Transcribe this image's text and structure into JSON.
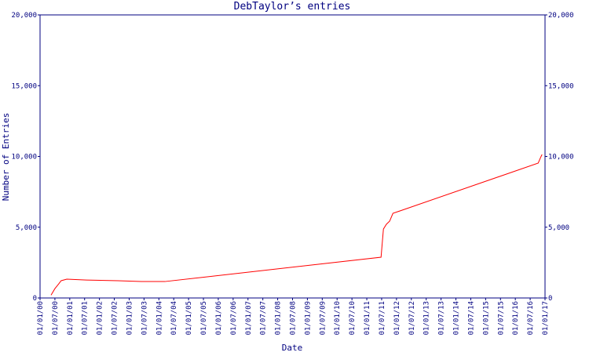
{
  "chart_data": {
    "type": "line",
    "title": "DebTaylor’s entries",
    "x_label": "Date",
    "y_label": "Number of Entries",
    "x": [
      2000.37,
      2000.5,
      2000.63,
      2000.71,
      2000.9,
      2001.56,
      2002.62,
      2003.41,
      2004.2,
      2011.48,
      2011.56,
      2011.66,
      2011.77,
      2011.88,
      2016.77,
      2016.85,
      2016.9
    ],
    "series": [
      {
        "name": "entries",
        "color": "#ff0000",
        "values": [
          200,
          660,
          1000,
          1220,
          1330,
          1270,
          1220,
          1160,
          1160,
          2880,
          4870,
          5210,
          5430,
          5980,
          9530,
          9920,
          10140
        ]
      }
    ],
    "xlim": [
      2000,
      2017
    ],
    "xticks": [
      {
        "value": 2000,
        "label": "01/01/00"
      },
      {
        "value": 2000.5,
        "label": "01/07/00"
      },
      {
        "value": 2001,
        "label": "01/01/01"
      },
      {
        "value": 2001.5,
        "label": "01/07/01"
      },
      {
        "value": 2002,
        "label": "01/01/02"
      },
      {
        "value": 2002.5,
        "label": "01/07/02"
      },
      {
        "value": 2003,
        "label": "01/01/03"
      },
      {
        "value": 2003.5,
        "label": "01/07/03"
      },
      {
        "value": 2004,
        "label": "01/01/04"
      },
      {
        "value": 2004.5,
        "label": "01/07/04"
      },
      {
        "value": 2005,
        "label": "01/01/05"
      },
      {
        "value": 2005.5,
        "label": "01/07/05"
      },
      {
        "value": 2006,
        "label": "01/01/06"
      },
      {
        "value": 2006.5,
        "label": "01/07/06"
      },
      {
        "value": 2007,
        "label": "01/01/07"
      },
      {
        "value": 2007.5,
        "label": "01/07/07"
      },
      {
        "value": 2008,
        "label": "01/01/08"
      },
      {
        "value": 2008.5,
        "label": "01/07/08"
      },
      {
        "value": 2009,
        "label": "01/01/09"
      },
      {
        "value": 2009.5,
        "label": "01/07/09"
      },
      {
        "value": 2010,
        "label": "01/01/10"
      },
      {
        "value": 2010.5,
        "label": "01/07/10"
      },
      {
        "value": 2011,
        "label": "01/01/11"
      },
      {
        "value": 2011.5,
        "label": "01/07/11"
      },
      {
        "value": 2012,
        "label": "01/01/12"
      },
      {
        "value": 2012.5,
        "label": "01/07/12"
      },
      {
        "value": 2013,
        "label": "01/01/13"
      },
      {
        "value": 2013.5,
        "label": "01/07/13"
      },
      {
        "value": 2014,
        "label": "01/01/14"
      },
      {
        "value": 2014.5,
        "label": "01/07/14"
      },
      {
        "value": 2015,
        "label": "01/01/15"
      },
      {
        "value": 2015.5,
        "label": "01/07/15"
      },
      {
        "value": 2016,
        "label": "01/01/16"
      },
      {
        "value": 2016.5,
        "label": "01/07/16"
      },
      {
        "value": 2017,
        "label": "01/01/17"
      }
    ],
    "ylim": [
      0,
      20000
    ],
    "yticks": [
      0,
      {
        "value": 5000,
        "label": "5,000"
      },
      {
        "value": 10000,
        "label": "10,000"
      },
      {
        "value": 15000,
        "label": "15,000"
      },
      {
        "value": 20000,
        "label": "20,000"
      }
    ],
    "y2lim": [
      0,
      20000
    ],
    "y2ticks": [
      0,
      {
        "value": 5000,
        "label": "5,000"
      },
      {
        "value": 10000,
        "label": "10,000"
      },
      {
        "value": 15000,
        "label": "15,000"
      },
      {
        "value": 20000,
        "label": "20,000"
      }
    ]
  }
}
